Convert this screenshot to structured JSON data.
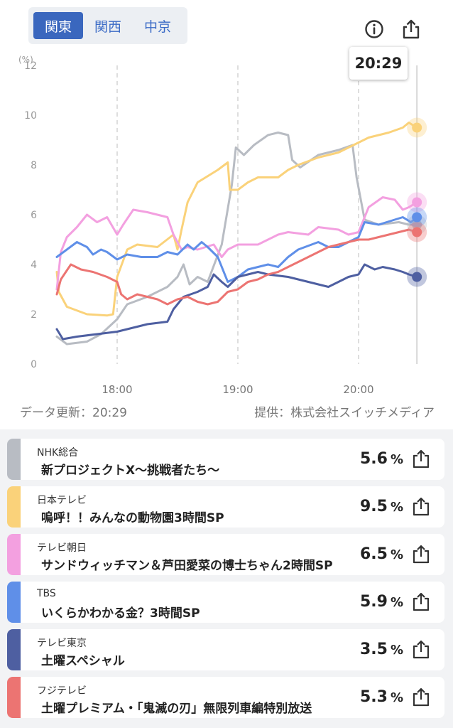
{
  "tabs": [
    {
      "label": "関東",
      "active": true
    },
    {
      "label": "関西",
      "active": false
    },
    {
      "label": "中京",
      "active": false
    }
  ],
  "toolbar": {
    "info_icon": "info-icon",
    "share_icon": "share-icon"
  },
  "current_time": "20:29",
  "footer": {
    "updated": "データ更新：20:29",
    "provider": "提供：株式会社スイッチメディア"
  },
  "channels": [
    {
      "channel": "NHK総合",
      "program": "新プロジェクトX〜挑戦者たち〜",
      "rating": "5.6",
      "unit": "%",
      "color": "#b8bcc3"
    },
    {
      "channel": "日本テレビ",
      "program": "嗚呼！！みんなの動物園3時間SP",
      "rating": "9.5",
      "unit": "%",
      "color": "#fad27a"
    },
    {
      "channel": "テレビ朝日",
      "program": "サンドウィッチマン＆芦田愛菜の博士ちゃん2時間SP",
      "rating": "6.5",
      "unit": "%",
      "color": "#f3a0e0"
    },
    {
      "channel": "TBS",
      "program": "いくらかわかる金？3時間SP",
      "rating": "5.9",
      "unit": "%",
      "color": "#5f8fe8"
    },
    {
      "channel": "テレビ東京",
      "program": "土曜スペシャル",
      "rating": "3.5",
      "unit": "%",
      "color": "#4e5fa1"
    },
    {
      "channel": "フジテレビ",
      "program": "土曜プレミアム・「鬼滅の刃」無限列車編特別放送",
      "rating": "5.3",
      "unit": "%",
      "color": "#ec7472"
    }
  ],
  "chart_data": {
    "type": "line",
    "ylabel": "(%)",
    "ylim": [
      0,
      12
    ],
    "yticks": [
      "0",
      "2",
      "4",
      "6",
      "8",
      "10",
      "12"
    ],
    "xlim": [
      "17:30",
      "20:30"
    ],
    "xticks": [
      "18:00",
      "19:00",
      "20:00"
    ],
    "grid": "dashed vertical lines at hour marks",
    "cursor_time": "20:29",
    "series": [
      {
        "name": "NHK総合",
        "color": "#b8bcc3",
        "points": [
          [
            "17:30",
            1.1
          ],
          [
            "17:35",
            0.8
          ],
          [
            "17:45",
            0.9
          ],
          [
            "17:52",
            1.2
          ],
          [
            "18:00",
            1.8
          ],
          [
            "18:05",
            2.4
          ],
          [
            "18:15",
            2.7
          ],
          [
            "18:25",
            3.1
          ],
          [
            "18:30",
            3.5
          ],
          [
            "18:33",
            4.0
          ],
          [
            "18:36",
            3.2
          ],
          [
            "18:40",
            3.5
          ],
          [
            "18:45",
            3.3
          ],
          [
            "18:52",
            4.8
          ],
          [
            "18:57",
            7.2
          ],
          [
            "18:59",
            8.7
          ],
          [
            "19:03",
            8.4
          ],
          [
            "19:08",
            8.8
          ],
          [
            "19:15",
            9.2
          ],
          [
            "19:20",
            9.3
          ],
          [
            "19:25",
            9.2
          ],
          [
            "19:27",
            8.2
          ],
          [
            "19:31",
            7.9
          ],
          [
            "19:40",
            8.4
          ],
          [
            "19:50",
            8.6
          ],
          [
            "19:57",
            8.8
          ],
          [
            "19:59",
            7.5
          ],
          [
            "20:03",
            5.8
          ],
          [
            "20:10",
            5.6
          ],
          [
            "20:20",
            5.7
          ],
          [
            "20:25",
            5.6
          ],
          [
            "20:29",
            5.6
          ]
        ]
      },
      {
        "name": "日本テレビ",
        "color": "#fad27a",
        "points": [
          [
            "17:30",
            3.7
          ],
          [
            "17:31",
            2.9
          ],
          [
            "17:35",
            2.3
          ],
          [
            "17:45",
            2.0
          ],
          [
            "17:55",
            1.95
          ],
          [
            "17:58",
            2.0
          ],
          [
            "18:00",
            3.5
          ],
          [
            "18:05",
            4.6
          ],
          [
            "18:10",
            4.8
          ],
          [
            "18:20",
            4.7
          ],
          [
            "18:28",
            5.2
          ],
          [
            "18:30",
            4.6
          ],
          [
            "18:32",
            5.4
          ],
          [
            "18:35",
            6.5
          ],
          [
            "18:40",
            7.3
          ],
          [
            "18:50",
            7.8
          ],
          [
            "18:55",
            8.1
          ],
          [
            "18:56",
            7.0
          ],
          [
            "19:00",
            7.0
          ],
          [
            "19:05",
            7.3
          ],
          [
            "19:10",
            7.5
          ],
          [
            "19:20",
            7.5
          ],
          [
            "19:25",
            7.8
          ],
          [
            "19:30",
            8.0
          ],
          [
            "19:40",
            8.3
          ],
          [
            "19:50",
            8.5
          ],
          [
            "20:00",
            8.9
          ],
          [
            "20:05",
            9.1
          ],
          [
            "20:15",
            9.3
          ],
          [
            "20:22",
            9.5
          ],
          [
            "20:25",
            9.7
          ],
          [
            "20:29",
            9.5
          ]
        ]
      },
      {
        "name": "テレビ朝日",
        "color": "#f3a0e0",
        "points": [
          [
            "17:30",
            3.0
          ],
          [
            "17:32",
            4.5
          ],
          [
            "17:35",
            5.1
          ],
          [
            "17:40",
            5.5
          ],
          [
            "17:45",
            6.0
          ],
          [
            "17:50",
            5.7
          ],
          [
            "17:55",
            5.9
          ],
          [
            "18:00",
            5.2
          ],
          [
            "18:03",
            5.6
          ],
          [
            "18:08",
            6.2
          ],
          [
            "18:15",
            6.1
          ],
          [
            "18:25",
            5.9
          ],
          [
            "18:28",
            5.2
          ],
          [
            "18:32",
            4.6
          ],
          [
            "18:35",
            4.7
          ],
          [
            "18:40",
            4.6
          ],
          [
            "18:48",
            4.8
          ],
          [
            "18:52",
            4.3
          ],
          [
            "18:55",
            4.6
          ],
          [
            "19:00",
            4.8
          ],
          [
            "19:10",
            4.8
          ],
          [
            "19:15",
            5.0
          ],
          [
            "19:20",
            5.2
          ],
          [
            "19:25",
            5.3
          ],
          [
            "19:35",
            5.2
          ],
          [
            "19:40",
            5.5
          ],
          [
            "19:50",
            5.4
          ],
          [
            "19:55",
            5.2
          ],
          [
            "20:00",
            5.3
          ],
          [
            "20:05",
            6.3
          ],
          [
            "20:12",
            6.7
          ],
          [
            "20:18",
            6.6
          ],
          [
            "20:22",
            6.2
          ],
          [
            "20:25",
            6.3
          ],
          [
            "20:29",
            6.5
          ]
        ]
      },
      {
        "name": "TBS",
        "color": "#5f8fe8",
        "points": [
          [
            "17:30",
            4.3
          ],
          [
            "17:35",
            4.6
          ],
          [
            "17:40",
            4.9
          ],
          [
            "17:45",
            4.7
          ],
          [
            "17:48",
            4.4
          ],
          [
            "17:52",
            4.6
          ],
          [
            "17:55",
            4.5
          ],
          [
            "18:00",
            4.2
          ],
          [
            "18:05",
            4.4
          ],
          [
            "18:12",
            4.3
          ],
          [
            "18:20",
            4.3
          ],
          [
            "18:25",
            4.5
          ],
          [
            "18:30",
            4.4
          ],
          [
            "18:35",
            4.8
          ],
          [
            "18:38",
            4.6
          ],
          [
            "18:42",
            4.9
          ],
          [
            "18:45",
            4.7
          ],
          [
            "18:50",
            4.3
          ],
          [
            "18:55",
            3.3
          ],
          [
            "19:00",
            3.5
          ],
          [
            "19:05",
            3.8
          ],
          [
            "19:15",
            4.0
          ],
          [
            "19:20",
            3.9
          ],
          [
            "19:25",
            4.3
          ],
          [
            "19:30",
            4.6
          ],
          [
            "19:40",
            4.9
          ],
          [
            "19:45",
            4.7
          ],
          [
            "19:50",
            4.7
          ],
          [
            "19:55",
            4.9
          ],
          [
            "20:00",
            5.1
          ],
          [
            "20:03",
            5.7
          ],
          [
            "20:10",
            5.6
          ],
          [
            "20:18",
            5.8
          ],
          [
            "20:22",
            5.9
          ],
          [
            "20:26",
            5.7
          ],
          [
            "20:29",
            5.9
          ]
        ]
      },
      {
        "name": "テレビ東京",
        "color": "#4e5fa1",
        "points": [
          [
            "17:30",
            1.4
          ],
          [
            "17:33",
            1.0
          ],
          [
            "17:40",
            1.1
          ],
          [
            "17:50",
            1.2
          ],
          [
            "18:00",
            1.3
          ],
          [
            "18:05",
            1.4
          ],
          [
            "18:15",
            1.6
          ],
          [
            "18:25",
            1.7
          ],
          [
            "18:28",
            2.2
          ],
          [
            "18:33",
            2.7
          ],
          [
            "18:40",
            2.9
          ],
          [
            "18:45",
            3.1
          ],
          [
            "18:48",
            3.6
          ],
          [
            "18:52",
            3.3
          ],
          [
            "18:55",
            3.1
          ],
          [
            "19:00",
            3.5
          ],
          [
            "19:10",
            3.7
          ],
          [
            "19:15",
            3.6
          ],
          [
            "19:25",
            3.5
          ],
          [
            "19:30",
            3.4
          ],
          [
            "19:35",
            3.3
          ],
          [
            "19:40",
            3.2
          ],
          [
            "19:45",
            3.1
          ],
          [
            "19:50",
            3.3
          ],
          [
            "19:55",
            3.5
          ],
          [
            "20:00",
            3.6
          ],
          [
            "20:03",
            4.0
          ],
          [
            "20:08",
            3.8
          ],
          [
            "20:12",
            3.9
          ],
          [
            "20:18",
            3.8
          ],
          [
            "20:22",
            3.7
          ],
          [
            "20:25",
            3.6
          ],
          [
            "20:29",
            3.5
          ]
        ]
      },
      {
        "name": "フジテレビ",
        "color": "#ec7472",
        "points": [
          [
            "17:30",
            2.8
          ],
          [
            "17:32",
            3.4
          ],
          [
            "17:37",
            4.0
          ],
          [
            "17:42",
            3.8
          ],
          [
            "17:48",
            3.7
          ],
          [
            "17:55",
            3.5
          ],
          [
            "18:00",
            3.3
          ],
          [
            "18:02",
            2.8
          ],
          [
            "18:05",
            2.6
          ],
          [
            "18:10",
            2.8
          ],
          [
            "18:15",
            2.7
          ],
          [
            "18:20",
            2.6
          ],
          [
            "18:25",
            2.4
          ],
          [
            "18:30",
            2.6
          ],
          [
            "18:35",
            2.7
          ],
          [
            "18:40",
            2.5
          ],
          [
            "18:45",
            2.4
          ],
          [
            "18:50",
            2.5
          ],
          [
            "18:55",
            2.9
          ],
          [
            "19:00",
            3.0
          ],
          [
            "19:05",
            3.3
          ],
          [
            "19:10",
            3.4
          ],
          [
            "19:15",
            3.6
          ],
          [
            "19:20",
            3.7
          ],
          [
            "19:25",
            3.9
          ],
          [
            "19:30",
            4.1
          ],
          [
            "19:35",
            4.3
          ],
          [
            "19:40",
            4.5
          ],
          [
            "19:45",
            4.7
          ],
          [
            "19:50",
            4.8
          ],
          [
            "19:55",
            4.9
          ],
          [
            "20:00",
            5.0
          ],
          [
            "20:05",
            5.0
          ],
          [
            "20:10",
            5.1
          ],
          [
            "20:15",
            5.2
          ],
          [
            "20:20",
            5.3
          ],
          [
            "20:25",
            5.4
          ],
          [
            "20:29",
            5.3
          ]
        ]
      }
    ]
  }
}
